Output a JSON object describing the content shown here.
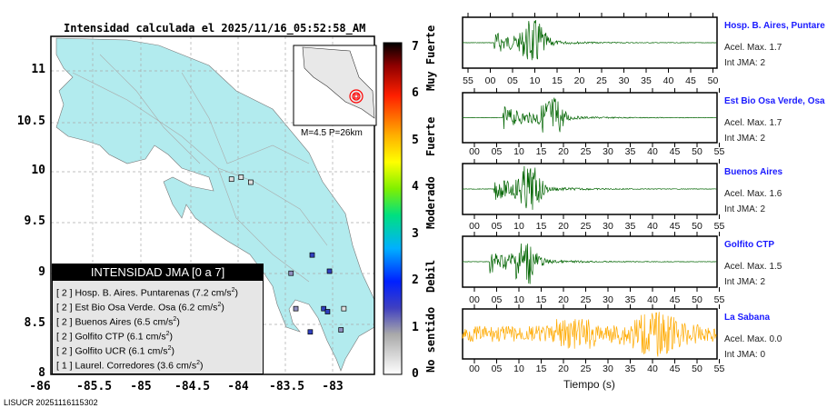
{
  "title": "Intensidad calculada el 2025/11/16_05:52:58_AM",
  "footer": "LISUCR 20251116115302",
  "chart_data": [
    {
      "type": "map",
      "title": "Intensidad calculada el 2025/11/16_05:52:58_AM",
      "xticks": [
        "-86",
        "-85.5",
        "-85",
        "-84.5",
        "-84",
        "-83.5",
        "-83"
      ],
      "yticks": [
        "11",
        "10.5",
        "10",
        "9.5",
        "9",
        "8.5",
        "8"
      ],
      "xlim": [
        -86,
        -82.5
      ],
      "ylim": [
        8,
        11.3
      ],
      "inset_label": "M=4.5 P=26km",
      "epicenter": {
        "lon": -83.6,
        "lat": 8.85
      },
      "stations": [
        {
          "lon": -83.28,
          "lat": 9.18,
          "int": 2
        },
        {
          "lon": -83.1,
          "lat": 9.02,
          "int": 2
        },
        {
          "lon": -83.5,
          "lat": 9.0,
          "int": 1
        },
        {
          "lon": -83.16,
          "lat": 8.65,
          "int": 2
        },
        {
          "lon": -83.12,
          "lat": 8.62,
          "int": 2
        },
        {
          "lon": -83.45,
          "lat": 8.65,
          "int": 1
        },
        {
          "lon": -83.3,
          "lat": 8.42,
          "int": 2
        },
        {
          "lon": -82.95,
          "lat": 8.65,
          "int": 0
        },
        {
          "lon": -82.98,
          "lat": 8.44,
          "int": 1
        },
        {
          "lon": -84.02,
          "lat": 9.95,
          "int": 0
        },
        {
          "lon": -84.12,
          "lat": 9.93,
          "int": 0
        },
        {
          "lon": -83.92,
          "lat": 9.9,
          "int": 0
        }
      ],
      "colorbar": {
        "ticks": [
          "0",
          "1",
          "2",
          "3",
          "4",
          "5",
          "6",
          "7"
        ],
        "labels": [
          "No sentido",
          "Debil",
          "Moderado",
          "Fuerte",
          "Muy Fuerte"
        ]
      },
      "legend": {
        "title": "INTENSIDAD JMA [0 a 7]",
        "items": [
          {
            "int": "[ 2 ]",
            "name": "Hosp. B. Aires. Puntarenas",
            "acc": "(7.2 cm/s",
            "sup": "2",
            "close": ")"
          },
          {
            "int": "[ 2 ]",
            "name": "Est Bio Osa Verde. Osa",
            "acc": "(6.2 cm/s",
            "sup": "2",
            "close": ")"
          },
          {
            "int": "[ 2 ]",
            "name": "Buenos Aires",
            "acc": "(6.5 cm/s",
            "sup": "2",
            "close": ")"
          },
          {
            "int": "[ 2 ]",
            "name": "Golfito CTP",
            "acc": "(6.1 cm/s",
            "sup": "2",
            "close": ")"
          },
          {
            "int": "[ 2 ]",
            "name": "Golfito UCR",
            "acc": "(6.1 cm/s",
            "sup": "2",
            "close": ")"
          },
          {
            "int": "[ 1 ]",
            "name": "Laurel. Corredores",
            "acc": "(3.6 cm/s",
            "sup": "2",
            "close": ")"
          }
        ]
      }
    },
    {
      "type": "line",
      "xlabel": "Tiempo (s)",
      "waveforms": [
        {
          "name": "Hosp. B. Aires, Puntare",
          "acel": "Acel. Max. 1.7",
          "int": "Int JMA: 2",
          "color": "#006400",
          "ticks": [
            "55",
            "00",
            "05",
            "10",
            "15",
            "20",
            "25",
            "30",
            "35",
            "40",
            "45",
            "50"
          ],
          "onset": 7,
          "peak": 16
        },
        {
          "name": "Est Bio Osa Verde, Osa",
          "acel": "Acel. Max. 1.7",
          "int": "Int JMA: 2",
          "color": "#006400",
          "ticks": [
            "00",
            "05",
            "10",
            "15",
            "20",
            "25",
            "30",
            "35",
            "40",
            "45",
            "50",
            "55"
          ],
          "onset": 9,
          "peak": 20
        },
        {
          "name": "Buenos Aires",
          "acel": "Acel. Max. 1.6",
          "int": "Int JMA: 2",
          "color": "#006400",
          "ticks": [
            "00",
            "05",
            "10",
            "15",
            "20",
            "25",
            "30",
            "35",
            "40",
            "45",
            "50",
            "55"
          ],
          "onset": 7,
          "peak": 15
        },
        {
          "name": "Golfito CTP",
          "acel": "Acel. Max. 1.5",
          "int": "Int JMA: 2",
          "color": "#006400",
          "ticks": [
            "00",
            "05",
            "10",
            "15",
            "20",
            "25",
            "30",
            "35",
            "40",
            "45",
            "50",
            "55"
          ],
          "onset": 6,
          "peak": 14
        },
        {
          "name": "La Sabana",
          "acel": "Acel. Max. 0.0",
          "int": "Int JMA: 0",
          "color": "#ffaa00",
          "ticks": [
            "00",
            "05",
            "10",
            "15",
            "20",
            "25",
            "30",
            "35",
            "40",
            "45",
            "50",
            "55"
          ],
          "onset": 0,
          "peak": 43,
          "noise": true
        }
      ]
    }
  ]
}
